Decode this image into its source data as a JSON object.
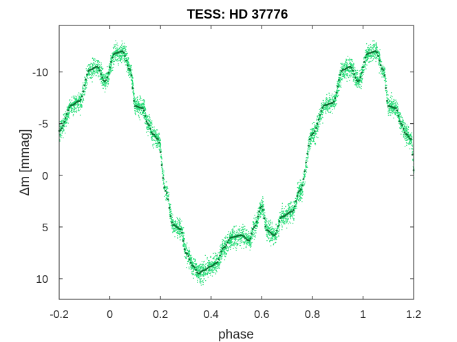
{
  "chart_data": {
    "type": "scatter",
    "title": "TESS: HD 37776",
    "xlabel": "phase",
    "ylabel": "Δm  [mmag]",
    "xlim": [
      -0.2,
      1.2
    ],
    "ylim": [
      -14.5,
      12
    ],
    "y_reversed": true,
    "grid": false,
    "legend": "none",
    "x_ticks": [
      -0.2,
      0,
      0.2,
      0.4,
      0.6,
      0.8,
      1,
      1.2
    ],
    "x_tick_labels": [
      "-0.2",
      "0",
      "0.2",
      "0.4",
      "0.6",
      "0.8",
      "1",
      "1.2"
    ],
    "y_ticks": [
      -10,
      -5,
      0,
      5,
      10
    ],
    "y_tick_labels": [
      "-10",
      "-5",
      "0",
      "5",
      "10"
    ],
    "colors": {
      "observations": "#1fdc73",
      "binned_mean": "#0a6b2e"
    },
    "series": [
      {
        "role": "observations",
        "scatter_mmag": 0.65,
        "x": [
          -0.2,
          -0.15,
          -0.12,
          -0.08,
          -0.05,
          -0.02,
          0.02,
          0.05,
          0.08,
          0.1,
          0.13,
          0.15,
          0.17,
          0.19,
          0.22,
          0.25,
          0.28,
          0.3,
          0.33,
          0.35,
          0.37,
          0.4,
          0.42,
          0.45,
          0.48,
          0.52,
          0.55,
          0.57,
          0.6,
          0.62,
          0.65,
          0.68,
          0.72,
          0.75,
          0.8,
          0.85,
          0.88,
          0.92,
          0.95,
          0.98,
          1.02,
          1.05,
          1.08,
          1.1,
          1.13,
          1.15,
          1.17,
          1.19,
          1.2
        ],
        "y": [
          -4.3,
          -6.8,
          -7.2,
          -10.2,
          -10.5,
          -9.1,
          -11.8,
          -12.0,
          -10.2,
          -6.7,
          -6.5,
          -5.0,
          -4.0,
          -3.5,
          1.5,
          4.8,
          5.2,
          7.5,
          8.8,
          9.5,
          9.2,
          8.8,
          8.5,
          7.0,
          6.0,
          5.8,
          6.3,
          5.0,
          3.0,
          5.3,
          5.8,
          4.0,
          3.5,
          1.5,
          -4.0,
          -6.8,
          -7.0,
          -10.2,
          -10.5,
          -9.1,
          -11.8,
          -12.0,
          -10.2,
          -6.7,
          -6.5,
          -5.0,
          -4.0,
          -3.5,
          -0.5
        ]
      }
    ]
  }
}
